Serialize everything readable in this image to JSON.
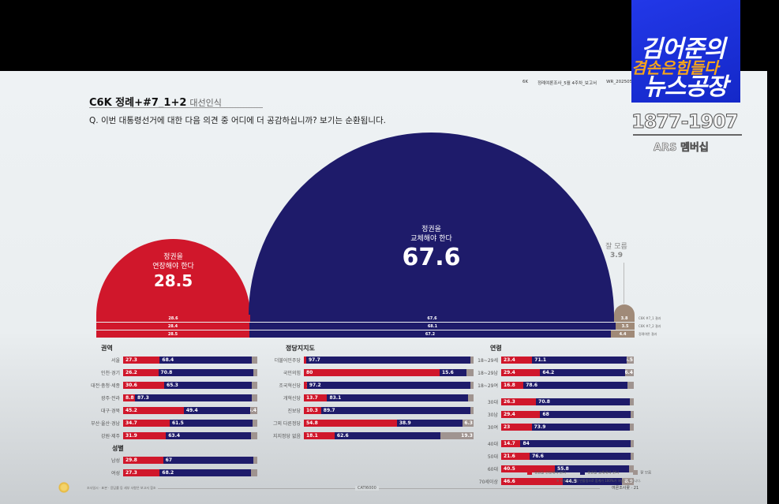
{
  "header": {
    "code": "C6K 정례+#7_1+2",
    "subtitle": "대선인식",
    "question": "Q. 이번 대통령선거에 대한 다음 의견 중 어디에 더 공감하십니까? 보기는 순환됩니다.",
    "meta": [
      "6K",
      "정례여론조사_5월 4주차_보고서",
      "WR_202505_"
    ]
  },
  "overlay": {
    "show_title_1": "김어준의",
    "show_title_2": "겸손은힘들다",
    "show_title_3": "뉴스공장",
    "phone": "1877-1907",
    "ars_label": "ARS 멤버십"
  },
  "colors": {
    "extend": "#d0172b",
    "replace": "#1e1b6a",
    "unsure": "#a08a78"
  },
  "chart_data": [
    {
      "type": "bar",
      "title": "C6K 정례+#7_1+2 대선인식",
      "subtitle": "이번 대통령선거에 대한 다음 의견 중 어디에 더 공감하십니까?",
      "categories": [
        "정권을 연장해야 한다",
        "정권을 교체해야 한다",
        "잘 모름"
      ],
      "values": [
        28.5,
        67.6,
        3.9
      ],
      "stacked_rows": [
        {
          "tag": "C6K #7_1 결과",
          "values": [
            28.6,
            67.6,
            3.8
          ]
        },
        {
          "tag": "C6K #7_2 결과",
          "values": [
            28.4,
            68.1,
            3.5
          ]
        },
        {
          "tag": "정례여론 결과",
          "values": [
            28.5,
            67.2,
            4.4
          ]
        }
      ]
    },
    {
      "type": "bar",
      "title": "권역",
      "stacked": true,
      "series_names": [
        "정권을 연장해야 한다",
        "정권을 교체해야 한다",
        "잘 모름"
      ],
      "categories": [
        "서울",
        "인천·경기",
        "대전·충청·세종",
        "광주·전라",
        "대구·경북",
        "부산·울산·경남",
        "강원·제주"
      ],
      "series": [
        {
          "name": "연장",
          "values": [
            27.3,
            26.2,
            30.6,
            8.8,
            45.2,
            34.7,
            31.9
          ]
        },
        {
          "name": "교체",
          "values": [
            68.4,
            70.8,
            65.3,
            87.3,
            49.4,
            61.5,
            63.4
          ]
        },
        {
          "name": "잘 모름",
          "values": [
            4.3,
            3.0,
            4.1,
            3.9,
            5.4,
            3.8,
            4.7
          ]
        }
      ]
    },
    {
      "type": "bar",
      "title": "성별",
      "stacked": true,
      "categories": [
        "남성",
        "여성"
      ],
      "series": [
        {
          "name": "연장",
          "values": [
            29.8,
            27.3
          ]
        },
        {
          "name": "교체",
          "values": [
            67.0,
            68.2
          ]
        },
        {
          "name": "잘 모름",
          "values": [
            3.2,
            4.5
          ]
        }
      ]
    },
    {
      "type": "bar",
      "title": "정당지지도",
      "stacked": true,
      "categories": [
        "더불어민주당",
        "국민의힘",
        "조국혁신당",
        "개혁신당",
        "진보당",
        "그외 다른정당",
        "지지정당 없음"
      ],
      "series": [
        {
          "name": "연장",
          "values": [
            1.3,
            80.0,
            1.8,
            13.7,
            10.3,
            54.8,
            18.1
          ]
        },
        {
          "name": "교체",
          "values": [
            97.7,
            15.6,
            97.2,
            83.1,
            89.7,
            38.9,
            62.6
          ]
        },
        {
          "name": "잘 모름",
          "values": [
            1.0,
            4.4,
            1.0,
            3.2,
            0.0,
            6.3,
            19.3
          ]
        }
      ]
    },
    {
      "type": "bar",
      "title": "연령",
      "stacked": true,
      "categories": [
        "18~29세",
        "18~29남",
        "18~29여",
        "30대",
        "30남",
        "30여",
        "40대",
        "50대",
        "60대",
        "70세이상"
      ],
      "series": [
        {
          "name": "연장",
          "values": [
            23.4,
            29.4,
            16.8,
            26.3,
            29.4,
            23.0,
            14.7,
            21.6,
            40.5,
            46.6
          ]
        },
        {
          "name": "교체",
          "values": [
            71.1,
            64.2,
            78.6,
            70.8,
            68.0,
            73.9,
            84.0,
            76.6,
            55.8,
            44.5
          ]
        },
        {
          "name": "잘 모름",
          "values": [
            5.5,
            6.4,
            4.6,
            2.9,
            2.6,
            3.1,
            1.3,
            1.8,
            3.7,
            8.9
          ]
        }
      ]
    }
  ],
  "big_labels": {
    "extend_l1": "정권을",
    "extend_l2": "연장해야 한다",
    "extend_val": "28.5",
    "replace_l1": "정권을",
    "replace_l2": "교체해야 한다",
    "replace_val": "67.6",
    "unsure_l1": "잘 모름",
    "unsure_val": "3.9"
  },
  "legend": {
    "items": [
      "정권을 연장해야 한다",
      "정권을 교체해야 한다",
      "잘 모름"
    ],
    "note": "※ 비율은 소수점 반올림으로 합계가 100%가 아닐 수 있습니다."
  },
  "footer": {
    "left": "조사일시 · 표본 · 응답률 등 세부 사항은 보고서 참조",
    "mid": "CATI6000",
    "right": "여론조사꽃 · 21"
  }
}
